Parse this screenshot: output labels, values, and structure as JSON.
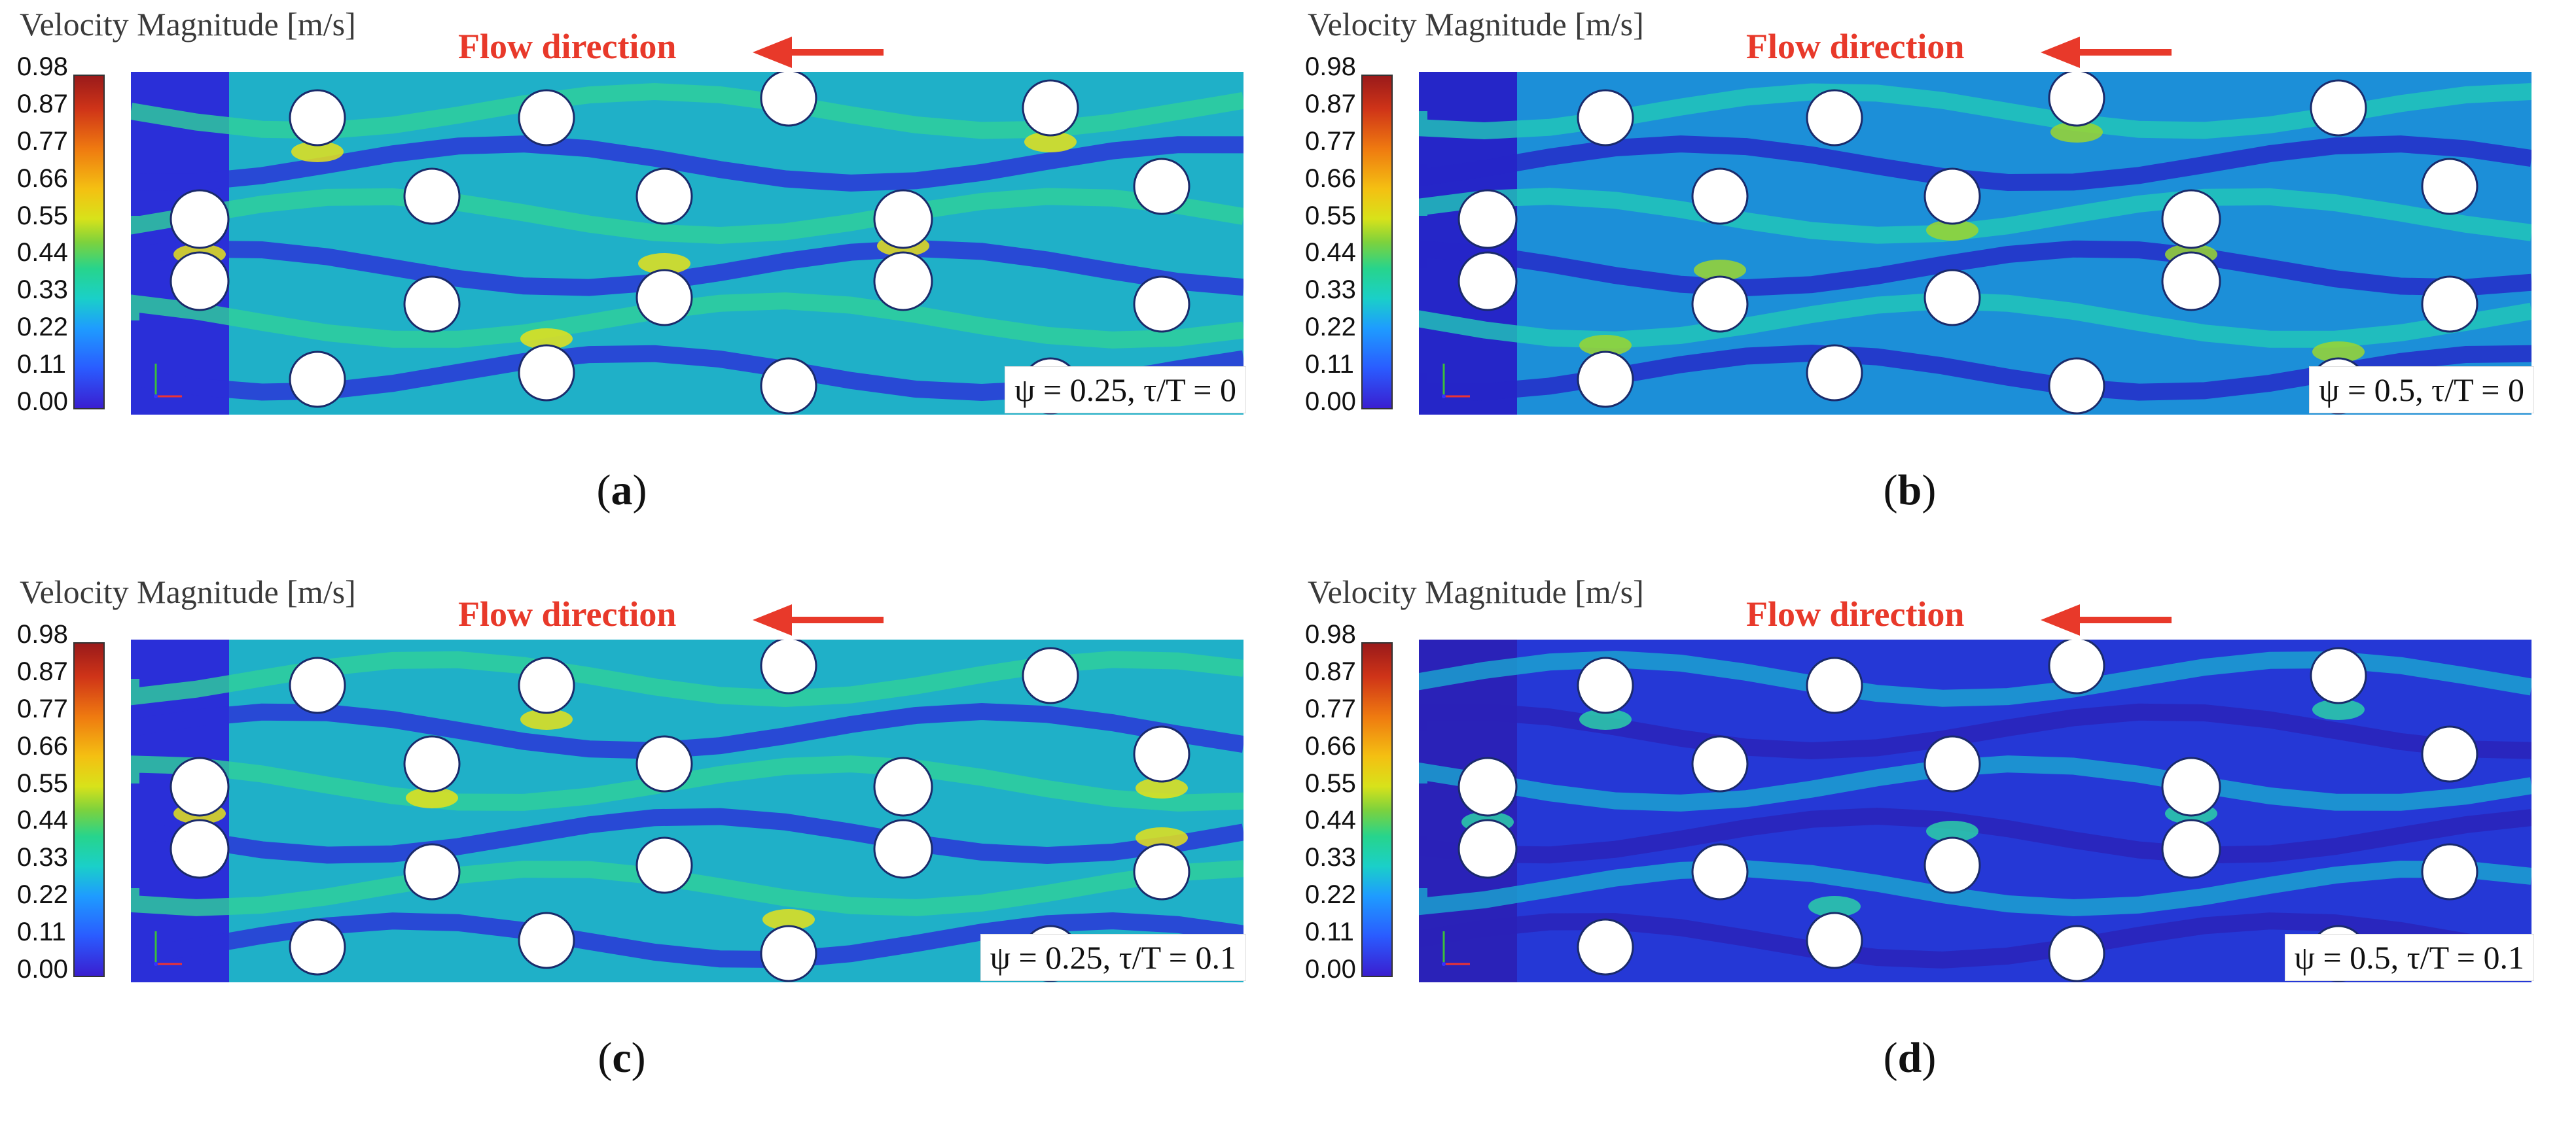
{
  "colorbar": {
    "title": "Velocity Magnitude [m/s]",
    "ticks": [
      "0.98",
      "0.87",
      "0.77",
      "0.66",
      "0.55",
      "0.44",
      "0.33",
      "0.22",
      "0.11",
      "0.00"
    ],
    "range": [
      0.0,
      0.98
    ],
    "colors": [
      "#3a1fd0",
      "#2a5cff",
      "#1e9cff",
      "#1ad0c8",
      "#27d48c",
      "#7ed23c",
      "#d8e21a",
      "#f4c012",
      "#ef7a10",
      "#cf3418",
      "#9a1a1a"
    ]
  },
  "flow_label": "Flow direction",
  "arrow_color": "#e8392a",
  "panels": [
    {
      "id": "a",
      "label": "a",
      "psi": "0.25",
      "tau": "0",
      "case_text_left": "ψ = 0.25, ",
      "case_text_right": "τ/T = 0",
      "level": "high"
    },
    {
      "id": "b",
      "label": "b",
      "psi": "0.5",
      "tau": "0",
      "case_text_left": "ψ = 0.5, ",
      "case_text_right": "τ/T = 0",
      "level": "mid"
    },
    {
      "id": "c",
      "label": "c",
      "psi": "0.25",
      "tau": "0.1",
      "case_text_left": "ψ = 0.25, ",
      "case_text_right": "τ/T = 0.1",
      "level": "high"
    },
    {
      "id": "d",
      "label": "d",
      "psi": "0.5",
      "tau": "0.1",
      "case_text_left": "ψ = 0.5, ",
      "case_text_right": "τ/T = 0.1",
      "level": "low"
    }
  ]
}
